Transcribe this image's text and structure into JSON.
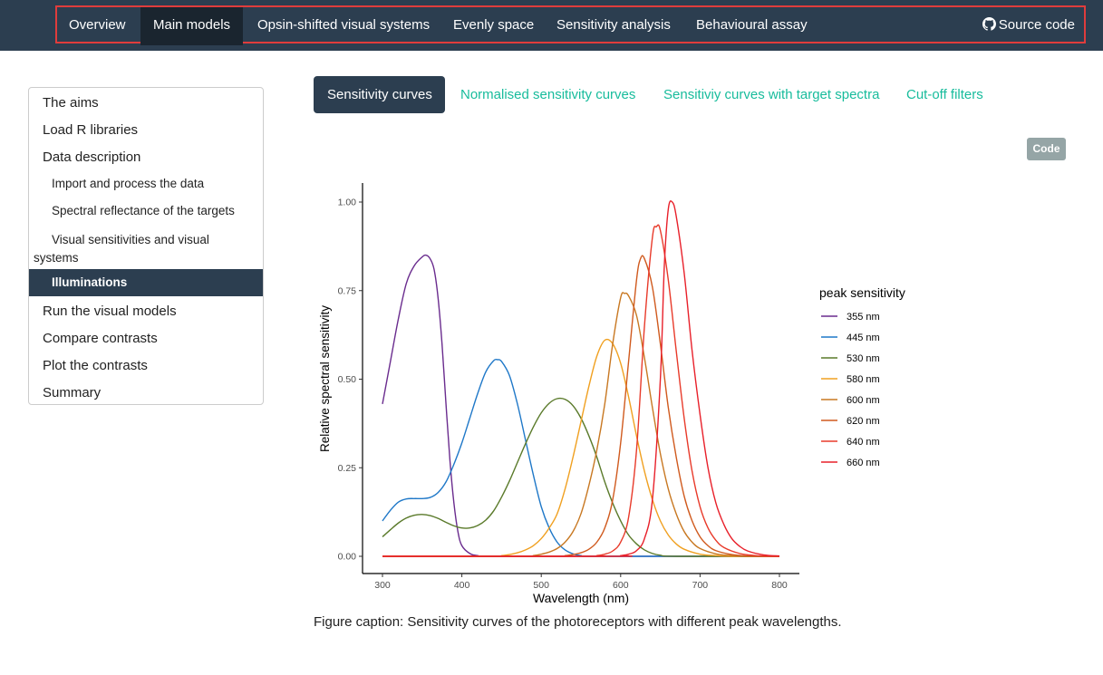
{
  "navbar": {
    "items": [
      {
        "label": "Overview",
        "active": false
      },
      {
        "label": "Main models",
        "active": true
      },
      {
        "label": "Opsin-shifted visual systems",
        "active": false
      },
      {
        "label": "Evenly space",
        "active": false
      },
      {
        "label": "Sensitivity analysis",
        "active": false
      },
      {
        "label": "Behavioural assay",
        "active": false
      }
    ],
    "source_code": "Source code",
    "source_icon": "github-icon"
  },
  "toc": {
    "items": [
      {
        "label": "The aims",
        "level": 1
      },
      {
        "label": "Load R libraries",
        "level": 1
      },
      {
        "label": "Data description",
        "level": 1
      },
      {
        "label": "Import and process the data",
        "level": 2
      },
      {
        "label": "Spectral reflectance of the targets",
        "level": 2
      },
      {
        "label": "Visual sensitivities and visual systems",
        "level": 2
      },
      {
        "label": "Illuminations",
        "level": 2,
        "active": true
      },
      {
        "label": "Run the visual models",
        "level": 1
      },
      {
        "label": "Compare contrasts",
        "level": 1
      },
      {
        "label": "Plot the contrasts",
        "level": 1
      },
      {
        "label": "Summary",
        "level": 1
      }
    ]
  },
  "tabs": [
    {
      "label": "Sensitivity curves",
      "active": true
    },
    {
      "label": "Normalised sensitivity curves",
      "active": false
    },
    {
      "label": "Sensitiviy curves with target spectra",
      "active": false
    },
    {
      "label": "Cut-off filters",
      "active": false
    }
  ],
  "code_button": "Code",
  "caption": "Figure caption: Sensitivity curves of the photoreceptors with different peak wavelengths.",
  "colors": {
    "navbar": "#2c3e50",
    "accent": "#18bc9c",
    "nav_border": "#e03c3c"
  },
  "chart_data": {
    "type": "line",
    "title": "",
    "xlabel": "Wavelength (nm)",
    "ylabel": "Relative spectral sensitivity",
    "xlim": [
      300,
      800
    ],
    "ylim": [
      0,
      1
    ],
    "x_ticks": [
      "300",
      "400",
      "500",
      "600",
      "700",
      "800"
    ],
    "y_ticks": [
      "0.00",
      "0.25",
      "0.50",
      "0.75",
      "1.00"
    ],
    "grid": false,
    "legend_title": "peak sensitivity",
    "legend_position": "right",
    "series": [
      {
        "name": "355 nm",
        "peak": 355,
        "color": "#6a2c8e",
        "points": [
          [
            300,
            0.43
          ],
          [
            310,
            0.55
          ],
          [
            320,
            0.67
          ],
          [
            330,
            0.77
          ],
          [
            340,
            0.82
          ],
          [
            350,
            0.845
          ],
          [
            355,
            0.85
          ],
          [
            360,
            0.84
          ],
          [
            365,
            0.81
          ],
          [
            370,
            0.73
          ],
          [
            375,
            0.6
          ],
          [
            380,
            0.43
          ],
          [
            385,
            0.27
          ],
          [
            390,
            0.15
          ],
          [
            395,
            0.07
          ],
          [
            400,
            0.03
          ],
          [
            410,
            0.008
          ],
          [
            420,
            0.002
          ],
          [
            440,
            0
          ],
          [
            800,
            0
          ]
        ]
      },
      {
        "name": "445 nm",
        "peak": 445,
        "color": "#1f78c8",
        "points": [
          [
            300,
            0.1
          ],
          [
            310,
            0.13
          ],
          [
            320,
            0.153
          ],
          [
            330,
            0.162
          ],
          [
            340,
            0.163
          ],
          [
            350,
            0.163
          ],
          [
            360,
            0.166
          ],
          [
            370,
            0.18
          ],
          [
            380,
            0.21
          ],
          [
            390,
            0.26
          ],
          [
            400,
            0.32
          ],
          [
            410,
            0.39
          ],
          [
            420,
            0.46
          ],
          [
            430,
            0.52
          ],
          [
            440,
            0.552
          ],
          [
            445,
            0.555
          ],
          [
            450,
            0.55
          ],
          [
            460,
            0.51
          ],
          [
            470,
            0.43
          ],
          [
            480,
            0.33
          ],
          [
            490,
            0.23
          ],
          [
            500,
            0.14
          ],
          [
            510,
            0.08
          ],
          [
            520,
            0.04
          ],
          [
            530,
            0.018
          ],
          [
            540,
            0.007
          ],
          [
            550,
            0.002
          ],
          [
            570,
            0
          ],
          [
            800,
            0
          ]
        ]
      },
      {
        "name": "530 nm",
        "peak": 530,
        "color": "#5a7a2a",
        "points": [
          [
            300,
            0.055
          ],
          [
            310,
            0.075
          ],
          [
            320,
            0.094
          ],
          [
            330,
            0.108
          ],
          [
            340,
            0.116
          ],
          [
            350,
            0.118
          ],
          [
            360,
            0.115
          ],
          [
            370,
            0.107
          ],
          [
            380,
            0.096
          ],
          [
            390,
            0.086
          ],
          [
            400,
            0.08
          ],
          [
            410,
            0.08
          ],
          [
            420,
            0.087
          ],
          [
            430,
            0.102
          ],
          [
            440,
            0.128
          ],
          [
            450,
            0.167
          ],
          [
            460,
            0.213
          ],
          [
            470,
            0.265
          ],
          [
            480,
            0.317
          ],
          [
            490,
            0.365
          ],
          [
            500,
            0.405
          ],
          [
            510,
            0.432
          ],
          [
            520,
            0.445
          ],
          [
            530,
            0.443
          ],
          [
            540,
            0.425
          ],
          [
            550,
            0.39
          ],
          [
            560,
            0.34
          ],
          [
            570,
            0.28
          ],
          [
            580,
            0.21
          ],
          [
            590,
            0.15
          ],
          [
            600,
            0.1
          ],
          [
            610,
            0.06
          ],
          [
            620,
            0.035
          ],
          [
            630,
            0.018
          ],
          [
            640,
            0.008
          ],
          [
            650,
            0.003
          ],
          [
            670,
            0
          ],
          [
            800,
            0
          ]
        ]
      },
      {
        "name": "580 nm",
        "peak": 580,
        "color": "#f0a020",
        "points": [
          [
            300,
            0
          ],
          [
            440,
            0
          ],
          [
            450,
            0.002
          ],
          [
            460,
            0.005
          ],
          [
            470,
            0.01
          ],
          [
            480,
            0.018
          ],
          [
            490,
            0.03
          ],
          [
            500,
            0.05
          ],
          [
            510,
            0.08
          ],
          [
            520,
            0.12
          ],
          [
            530,
            0.19
          ],
          [
            540,
            0.28
          ],
          [
            550,
            0.38
          ],
          [
            560,
            0.48
          ],
          [
            570,
            0.565
          ],
          [
            580,
            0.61
          ],
          [
            590,
            0.6
          ],
          [
            600,
            0.545
          ],
          [
            610,
            0.45
          ],
          [
            620,
            0.34
          ],
          [
            630,
            0.24
          ],
          [
            640,
            0.16
          ],
          [
            650,
            0.1
          ],
          [
            660,
            0.06
          ],
          [
            670,
            0.035
          ],
          [
            680,
            0.02
          ],
          [
            700,
            0.006
          ],
          [
            720,
            0.002
          ],
          [
            740,
            0
          ],
          [
            800,
            0
          ]
        ]
      },
      {
        "name": "600 nm",
        "peak": 600,
        "color": "#c87822",
        "points": [
          [
            300,
            0
          ],
          [
            480,
            0
          ],
          [
            490,
            0.002
          ],
          [
            500,
            0.006
          ],
          [
            510,
            0.012
          ],
          [
            520,
            0.022
          ],
          [
            530,
            0.04
          ],
          [
            540,
            0.07
          ],
          [
            550,
            0.12
          ],
          [
            560,
            0.2
          ],
          [
            570,
            0.3
          ],
          [
            580,
            0.43
          ],
          [
            590,
            0.6
          ],
          [
            600,
            0.73
          ],
          [
            605,
            0.742
          ],
          [
            610,
            0.735
          ],
          [
            620,
            0.68
          ],
          [
            630,
            0.56
          ],
          [
            640,
            0.42
          ],
          [
            650,
            0.29
          ],
          [
            660,
            0.19
          ],
          [
            670,
            0.12
          ],
          [
            680,
            0.07
          ],
          [
            690,
            0.04
          ],
          [
            700,
            0.022
          ],
          [
            720,
            0.007
          ],
          [
            740,
            0.002
          ],
          [
            760,
            0
          ],
          [
            800,
            0
          ]
        ]
      },
      {
        "name": "620 nm",
        "peak": 620,
        "color": "#d05a1e",
        "points": [
          [
            300,
            0
          ],
          [
            520,
            0
          ],
          [
            530,
            0.002
          ],
          [
            540,
            0.005
          ],
          [
            550,
            0.01
          ],
          [
            560,
            0.02
          ],
          [
            570,
            0.04
          ],
          [
            580,
            0.08
          ],
          [
            590,
            0.16
          ],
          [
            600,
            0.32
          ],
          [
            610,
            0.55
          ],
          [
            620,
            0.78
          ],
          [
            625,
            0.84
          ],
          [
            630,
            0.84
          ],
          [
            640,
            0.76
          ],
          [
            650,
            0.6
          ],
          [
            660,
            0.42
          ],
          [
            670,
            0.28
          ],
          [
            680,
            0.17
          ],
          [
            690,
            0.1
          ],
          [
            700,
            0.055
          ],
          [
            710,
            0.03
          ],
          [
            720,
            0.016
          ],
          [
            740,
            0.005
          ],
          [
            760,
            0.001
          ],
          [
            780,
            0
          ],
          [
            800,
            0
          ]
        ]
      },
      {
        "name": "640 nm",
        "peak": 640,
        "color": "#e83a2a",
        "points": [
          [
            300,
            0
          ],
          [
            560,
            0
          ],
          [
            570,
            0.002
          ],
          [
            580,
            0.006
          ],
          [
            590,
            0.015
          ],
          [
            600,
            0.04
          ],
          [
            610,
            0.11
          ],
          [
            620,
            0.3
          ],
          [
            630,
            0.65
          ],
          [
            640,
            0.9
          ],
          [
            645,
            0.93
          ],
          [
            650,
            0.92
          ],
          [
            660,
            0.78
          ],
          [
            670,
            0.58
          ],
          [
            680,
            0.39
          ],
          [
            690,
            0.24
          ],
          [
            700,
            0.14
          ],
          [
            710,
            0.08
          ],
          [
            720,
            0.045
          ],
          [
            730,
            0.025
          ],
          [
            750,
            0.008
          ],
          [
            770,
            0.002
          ],
          [
            790,
            0
          ],
          [
            800,
            0
          ]
        ]
      },
      {
        "name": "660 nm",
        "peak": 660,
        "color": "#e8202a",
        "points": [
          [
            300,
            0
          ],
          [
            590,
            0
          ],
          [
            600,
            0.002
          ],
          [
            610,
            0.006
          ],
          [
            620,
            0.016
          ],
          [
            630,
            0.05
          ],
          [
            640,
            0.16
          ],
          [
            650,
            0.5
          ],
          [
            655,
            0.82
          ],
          [
            660,
            0.98
          ],
          [
            665,
            1.0
          ],
          [
            670,
            0.96
          ],
          [
            680,
            0.8
          ],
          [
            690,
            0.58
          ],
          [
            700,
            0.4
          ],
          [
            710,
            0.25
          ],
          [
            720,
            0.15
          ],
          [
            730,
            0.09
          ],
          [
            740,
            0.05
          ],
          [
            750,
            0.028
          ],
          [
            760,
            0.015
          ],
          [
            780,
            0.004
          ],
          [
            800,
            0.001
          ]
        ]
      }
    ]
  }
}
